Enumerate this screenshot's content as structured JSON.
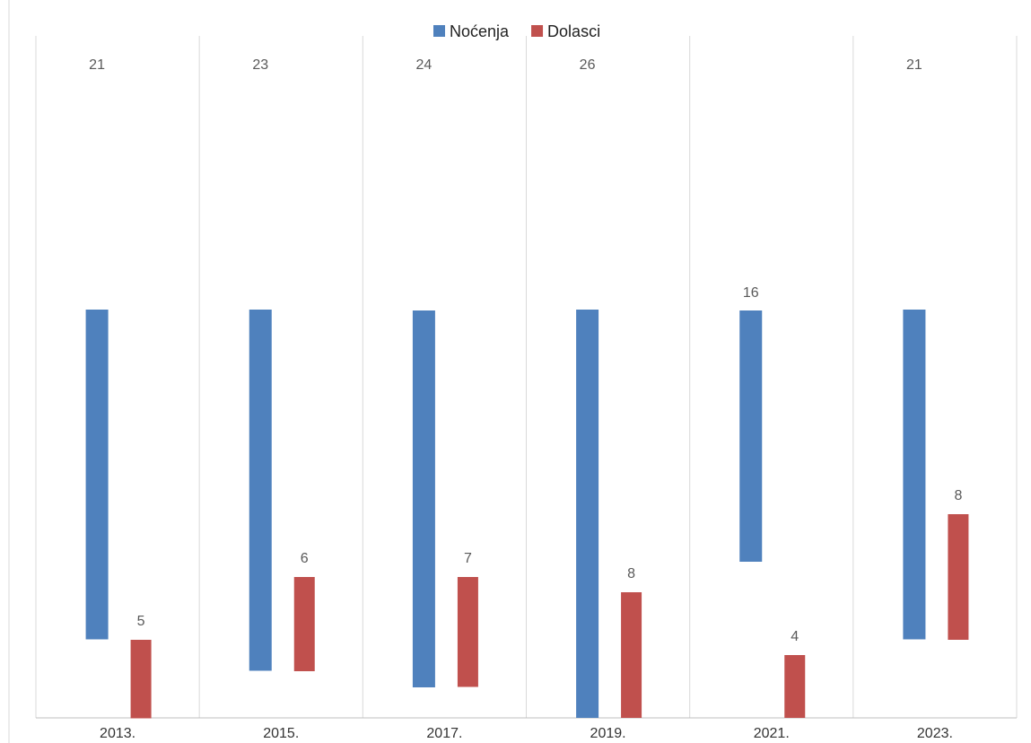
{
  "chart_data": {
    "type": "bar",
    "categories": [
      "2013.",
      "2015.",
      "2017.",
      "2019.",
      "2021.",
      "2023."
    ],
    "series": [
      {
        "name": "Noćenja",
        "color": "#4f81bd",
        "values": [
          21,
          23,
          24,
          26,
          16,
          21
        ]
      },
      {
        "name": "Dolasci",
        "color": "#c0504d",
        "values": [
          5,
          6,
          7,
          8,
          4,
          8
        ]
      }
    ],
    "legend": "top",
    "grid": true
  }
}
